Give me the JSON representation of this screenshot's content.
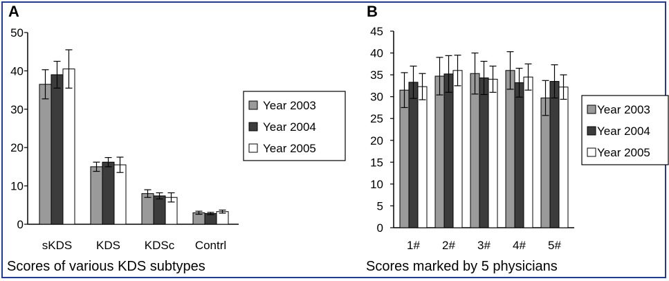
{
  "chart_data": [
    {
      "panel": "A",
      "type": "bar",
      "title": "Scores of various KDS subtypes",
      "categories": [
        "sKDS",
        "KDS",
        "KDSc",
        "Contrl"
      ],
      "series": [
        {
          "name": "Year 2003",
          "values": [
            36.5,
            15.0,
            8.0,
            3.0
          ],
          "errors": [
            3.8,
            1.2,
            1.0,
            0.4
          ]
        },
        {
          "name": "Year 2004",
          "values": [
            39.0,
            16.2,
            7.4,
            2.8
          ],
          "errors": [
            3.5,
            1.2,
            0.8,
            0.3
          ]
        },
        {
          "name": "Year 2005",
          "values": [
            40.5,
            15.5,
            7.0,
            3.3
          ],
          "errors": [
            5.0,
            2.0,
            1.2,
            0.4
          ]
        }
      ],
      "ylim": [
        0,
        50
      ],
      "yticks": [
        0,
        10,
        20,
        30,
        40,
        50
      ],
      "legend": "right",
      "grid": false
    },
    {
      "panel": "B",
      "type": "bar",
      "title": "Scores marked by 5 physicians",
      "categories": [
        "1#",
        "2#",
        "3#",
        "4#",
        "5#"
      ],
      "series": [
        {
          "name": "Year 2003",
          "values": [
            31.5,
            34.7,
            35.3,
            36.0,
            29.7
          ],
          "errors": [
            4.0,
            4.3,
            4.7,
            4.3,
            4.0
          ]
        },
        {
          "name": "Year 2004",
          "values": [
            33.3,
            35.2,
            34.3,
            33.2,
            33.5
          ],
          "errors": [
            3.7,
            4.2,
            3.8,
            3.3,
            3.8
          ]
        },
        {
          "name": "Year 2005",
          "values": [
            32.3,
            36.0,
            34.0,
            34.5,
            32.2
          ],
          "errors": [
            3.0,
            3.5,
            3.0,
            3.0,
            2.8
          ]
        }
      ],
      "ylim": [
        0,
        45
      ],
      "yticks": [
        0,
        5,
        10,
        15,
        20,
        25,
        30,
        35,
        40,
        45
      ],
      "legend": "right",
      "grid": false
    }
  ],
  "colors": {
    "series": [
      "#9a9a9a",
      "#3c3c3c",
      "#ffffff"
    ],
    "stroke": "#000000",
    "frame": "#1f3aa8"
  }
}
